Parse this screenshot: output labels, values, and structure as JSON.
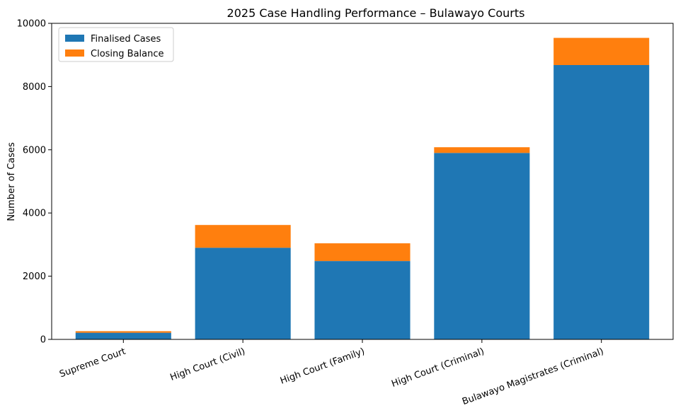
{
  "chart_data": {
    "type": "bar",
    "stacked": true,
    "title": "2025 Case Handling Performance – Bulawayo Courts",
    "xlabel": "",
    "ylabel": "Number of Cases",
    "ylim": [
      0,
      10000
    ],
    "yticks": [
      0,
      2000,
      4000,
      6000,
      8000,
      10000
    ],
    "grid": false,
    "legend_position": "top-left",
    "categories": [
      "Supreme Court",
      "High Court (Civil)",
      "High Court (Family)",
      "High Court (Criminal)",
      "Bulawayo Magistrates (Criminal)"
    ],
    "series": [
      {
        "name": "Finalised Cases",
        "color": "#1f77b4",
        "values": [
          210,
          2900,
          2480,
          5900,
          8680
        ]
      },
      {
        "name": "Closing Balance",
        "color": "#ff7f0e",
        "values": [
          50,
          720,
          560,
          180,
          860
        ]
      }
    ]
  }
}
